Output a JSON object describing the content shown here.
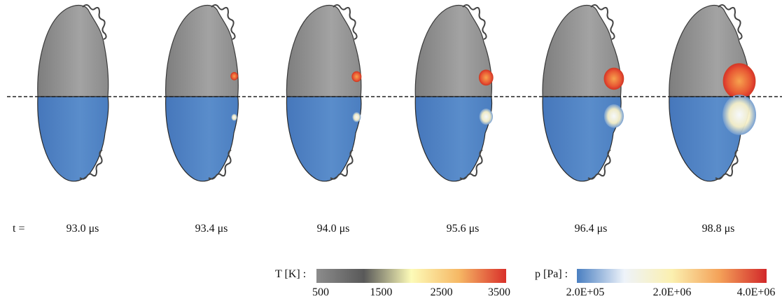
{
  "time_label": "t =",
  "frames": [
    {
      "time": "93.0 μs",
      "hot_spot": 0.0
    },
    {
      "time": "93.4 μs",
      "hot_spot": 0.1
    },
    {
      "time": "94.0 μs",
      "hot_spot": 0.18
    },
    {
      "time": "95.6 μs",
      "hot_spot": 0.35
    },
    {
      "time": "96.4 μs",
      "hot_spot": 0.55
    },
    {
      "time": "98.8 μs",
      "hot_spot": 1.0
    }
  ],
  "colorbars": {
    "temperature": {
      "label": "T [K] :",
      "ticks": [
        "500",
        "1500",
        "2500",
        "3500"
      ],
      "colors": [
        "#8c8c8c",
        "#595959",
        "#fdfbb8",
        "#f6b865",
        "#d9302a"
      ]
    },
    "pressure": {
      "label": "p [Pa] :",
      "ticks": [
        "2.0E+05",
        "2.0E+06",
        "4.0E+06"
      ],
      "colors": [
        "#4a7fc1",
        "#eef3fa",
        "#fbf0b0",
        "#f4a259",
        "#d2282a"
      ]
    }
  },
  "colors": {
    "upper_fill": "#8f8f8f",
    "lower_fill": "#4f82c3",
    "midline": "#222222"
  }
}
